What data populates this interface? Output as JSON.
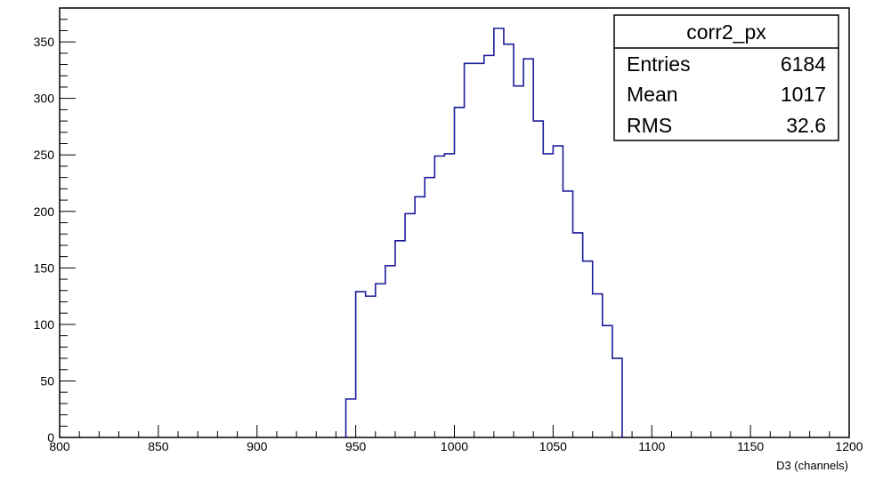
{
  "chart_data": {
    "type": "bar",
    "style": "step histogram",
    "series_color": "#1c1c9c",
    "bin_width": 2.5,
    "bin_low_edges": [
      945,
      947.5,
      950,
      952.5,
      955,
      957.5,
      960,
      962.5,
      965,
      967.5,
      970,
      972.5,
      975,
      977.5,
      980,
      982.5,
      985,
      987.5,
      990,
      992.5,
      995,
      997.5,
      1000,
      1002.5,
      1005,
      1007.5,
      1010,
      1012.5,
      1015,
      1017.5,
      1020,
      1022.5,
      1025,
      1027.5,
      1030,
      1032.5,
      1035,
      1037.5,
      1040,
      1042.5,
      1045,
      1047.5,
      1050,
      1052.5,
      1055,
      1057.5,
      1060,
      1062.5,
      1065,
      1067.5,
      1070,
      1072.5,
      1075,
      1077.5,
      1080,
      1082.5
    ],
    "values": [
      34,
      34,
      129,
      129,
      125,
      125,
      136,
      136,
      152,
      152,
      174,
      174,
      198,
      198,
      213,
      213,
      230,
      230,
      249,
      249,
      251,
      251,
      292,
      292,
      331,
      331,
      331,
      331,
      338,
      338,
      362,
      362,
      348,
      348,
      311,
      311,
      335,
      335,
      280,
      280,
      251,
      251,
      258,
      258,
      218,
      218,
      181,
      181,
      156,
      156,
      127,
      127,
      99,
      99,
      70,
      70
    ],
    "xlim": [
      800,
      1200
    ],
    "ylim": [
      0,
      380
    ],
    "x_ticks": [
      800,
      850,
      900,
      950,
      1000,
      1050,
      1100,
      1150,
      1200
    ],
    "y_ticks": [
      0,
      50,
      100,
      150,
      200,
      250,
      300,
      350
    ],
    "xlabel": "D3 (channels)",
    "ylabel": "",
    "title": ""
  },
  "stats_box": {
    "name": "corr2_px",
    "rows": [
      {
        "label": "Entries",
        "value": "6184"
      },
      {
        "label": "Mean",
        "value": "1017"
      },
      {
        "label": "RMS",
        "value": "32.6"
      }
    ]
  }
}
